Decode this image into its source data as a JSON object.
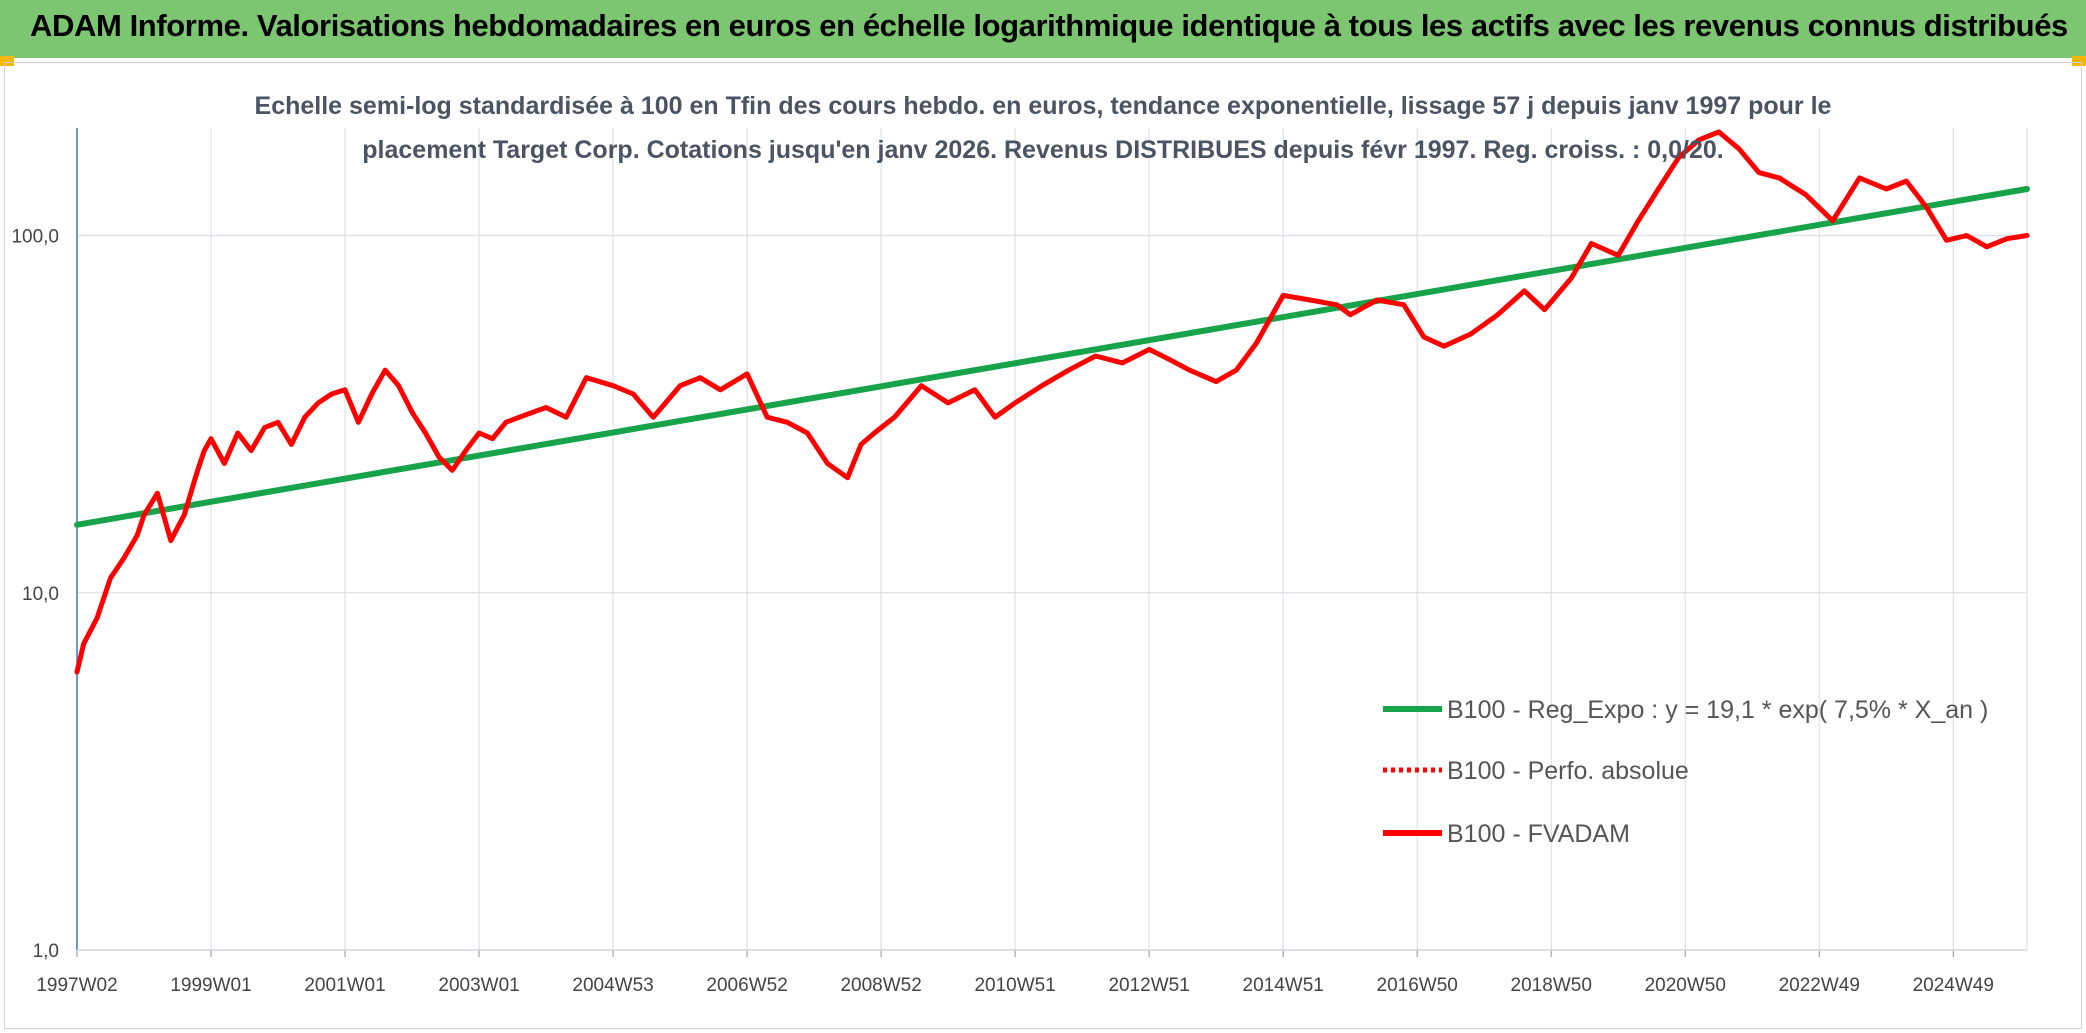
{
  "header": {
    "title": "ADAM Informe. Valorisations hebdomadaires en euros en échelle logarithmique identique à tous les actifs avec les revenus connus distribués"
  },
  "colors": {
    "header_bg": "#7dc671",
    "trend": "#16a34a",
    "fvadam": "#ff0000",
    "perfo": "#ff0000",
    "grid": "#dde2e8",
    "axis": "#4472c4"
  },
  "chart_data": {
    "type": "line",
    "title_line1": "Echelle semi-log standardisée à 100 en Tfin des cours hebdo. en euros, tendance exponentielle, lissage 57 j depuis janv 1997 pour le",
    "title_line2": "placement Target Corp. Cotations jusqu'en janv 2026. Revenus DISTRIBUES depuis févr 1997. Reg. croiss. : 0,0/20.",
    "yscale": "log",
    "ylim": [
      1,
      200
    ],
    "xlim": [
      1997.0,
      2026.1
    ],
    "ytick_values": [
      1,
      10,
      100
    ],
    "ytick_labels": [
      "1,0",
      "10,0",
      "100,0"
    ],
    "xtick_values": [
      1997.0,
      1999.0,
      2001.0,
      2003.0,
      2005.0,
      2007.0,
      2009.0,
      2011.0,
      2013.0,
      2015.0,
      2017.0,
      2019.0,
      2021.0,
      2023.0,
      2025.0
    ],
    "xtick_labels": [
      "1997W02",
      "1999W01",
      "2001W01",
      "2003W01",
      "2004W53",
      "2006W52",
      "2008W52",
      "2010W51",
      "2012W51",
      "2014W51",
      "2016W50",
      "2018W50",
      "2020W50",
      "2022W49",
      "2024W49"
    ],
    "legend": [
      {
        "label": "B100 - Reg_Expo : y = 19,1 * exp( 7,5% *  X_an )",
        "style": "solid-green"
      },
      {
        "label": "B100 - Perfo. absolue",
        "style": "dotted-red"
      },
      {
        "label": "B100 - FVADAM",
        "style": "solid-red"
      }
    ],
    "series": [
      {
        "name": "B100 - Reg_Expo",
        "x": [
          1997.0,
          2026.1
        ],
        "values": [
          15.5,
          135
        ]
      },
      {
        "name": "B100 - FVADAM",
        "x": [
          1997.0,
          1997.1,
          1997.3,
          1997.5,
          1997.7,
          1997.9,
          1998.0,
          1998.2,
          1998.4,
          1998.6,
          1998.8,
          1998.9,
          1999.0,
          1999.2,
          1999.4,
          1999.6,
          1999.8,
          2000.0,
          2000.2,
          2000.4,
          2000.6,
          2000.8,
          2001.0,
          2001.2,
          2001.4,
          2001.6,
          2001.8,
          2002.0,
          2002.2,
          2002.4,
          2002.6,
          2002.8,
          2003.0,
          2003.2,
          2003.4,
          2003.6,
          2003.8,
          2004.0,
          2004.3,
          2004.6,
          2005.0,
          2005.3,
          2005.6,
          2006.0,
          2006.3,
          2006.6,
          2007.0,
          2007.3,
          2007.6,
          2007.9,
          2008.2,
          2008.5,
          2008.7,
          2008.9,
          2009.2,
          2009.6,
          2010.0,
          2010.4,
          2010.7,
          2011.0,
          2011.4,
          2011.8,
          2012.2,
          2012.6,
          2013.0,
          2013.3,
          2013.6,
          2014.0,
          2014.3,
          2014.6,
          2015.0,
          2015.4,
          2015.8,
          2016.0,
          2016.4,
          2016.8,
          2017.1,
          2017.4,
          2017.8,
          2018.2,
          2018.6,
          2018.9,
          2019.3,
          2019.6,
          2020.0,
          2020.3,
          2020.6,
          2020.9,
          2021.2,
          2021.5,
          2021.8,
          2022.1,
          2022.4,
          2022.8,
          2023.2,
          2023.6,
          2024.0,
          2024.3,
          2024.6,
          2024.9,
          2025.2,
          2025.5,
          2025.8,
          2026.1
        ],
        "values": [
          6.0,
          7.2,
          8.5,
          11.0,
          12.5,
          14.5,
          16.5,
          19.0,
          14.0,
          16.5,
          22.0,
          25.0,
          27.0,
          23.0,
          28.0,
          25.0,
          29.0,
          30.0,
          26.0,
          31.0,
          34.0,
          36.0,
          37.0,
          30.0,
          36.0,
          42.0,
          38.0,
          32.0,
          28.0,
          24.0,
          22.0,
          25.0,
          28.0,
          27.0,
          30.0,
          31.0,
          32.0,
          33.0,
          31.0,
          40.0,
          38.0,
          36.0,
          31.0,
          38.0,
          40.0,
          37.0,
          41.0,
          31.0,
          30.0,
          28.0,
          23.0,
          21.0,
          26.0,
          28.0,
          31.0,
          38.0,
          34.0,
          37.0,
          31.0,
          34.0,
          38.0,
          42.0,
          46.0,
          44.0,
          48.0,
          45.0,
          42.0,
          39.0,
          42.0,
          50.0,
          68.0,
          66.0,
          64.0,
          60.0,
          66.0,
          64.0,
          52.0,
          49.0,
          53.0,
          60.0,
          70.0,
          62.0,
          76.0,
          95.0,
          88.0,
          110.0,
          135.0,
          165.0,
          185.0,
          195.0,
          175.0,
          150.0,
          145.0,
          130.0,
          110.0,
          145.0,
          135.0,
          142.0,
          120.0,
          97.0,
          100.0,
          93.0,
          98.0,
          100.0
        ]
      }
    ]
  }
}
